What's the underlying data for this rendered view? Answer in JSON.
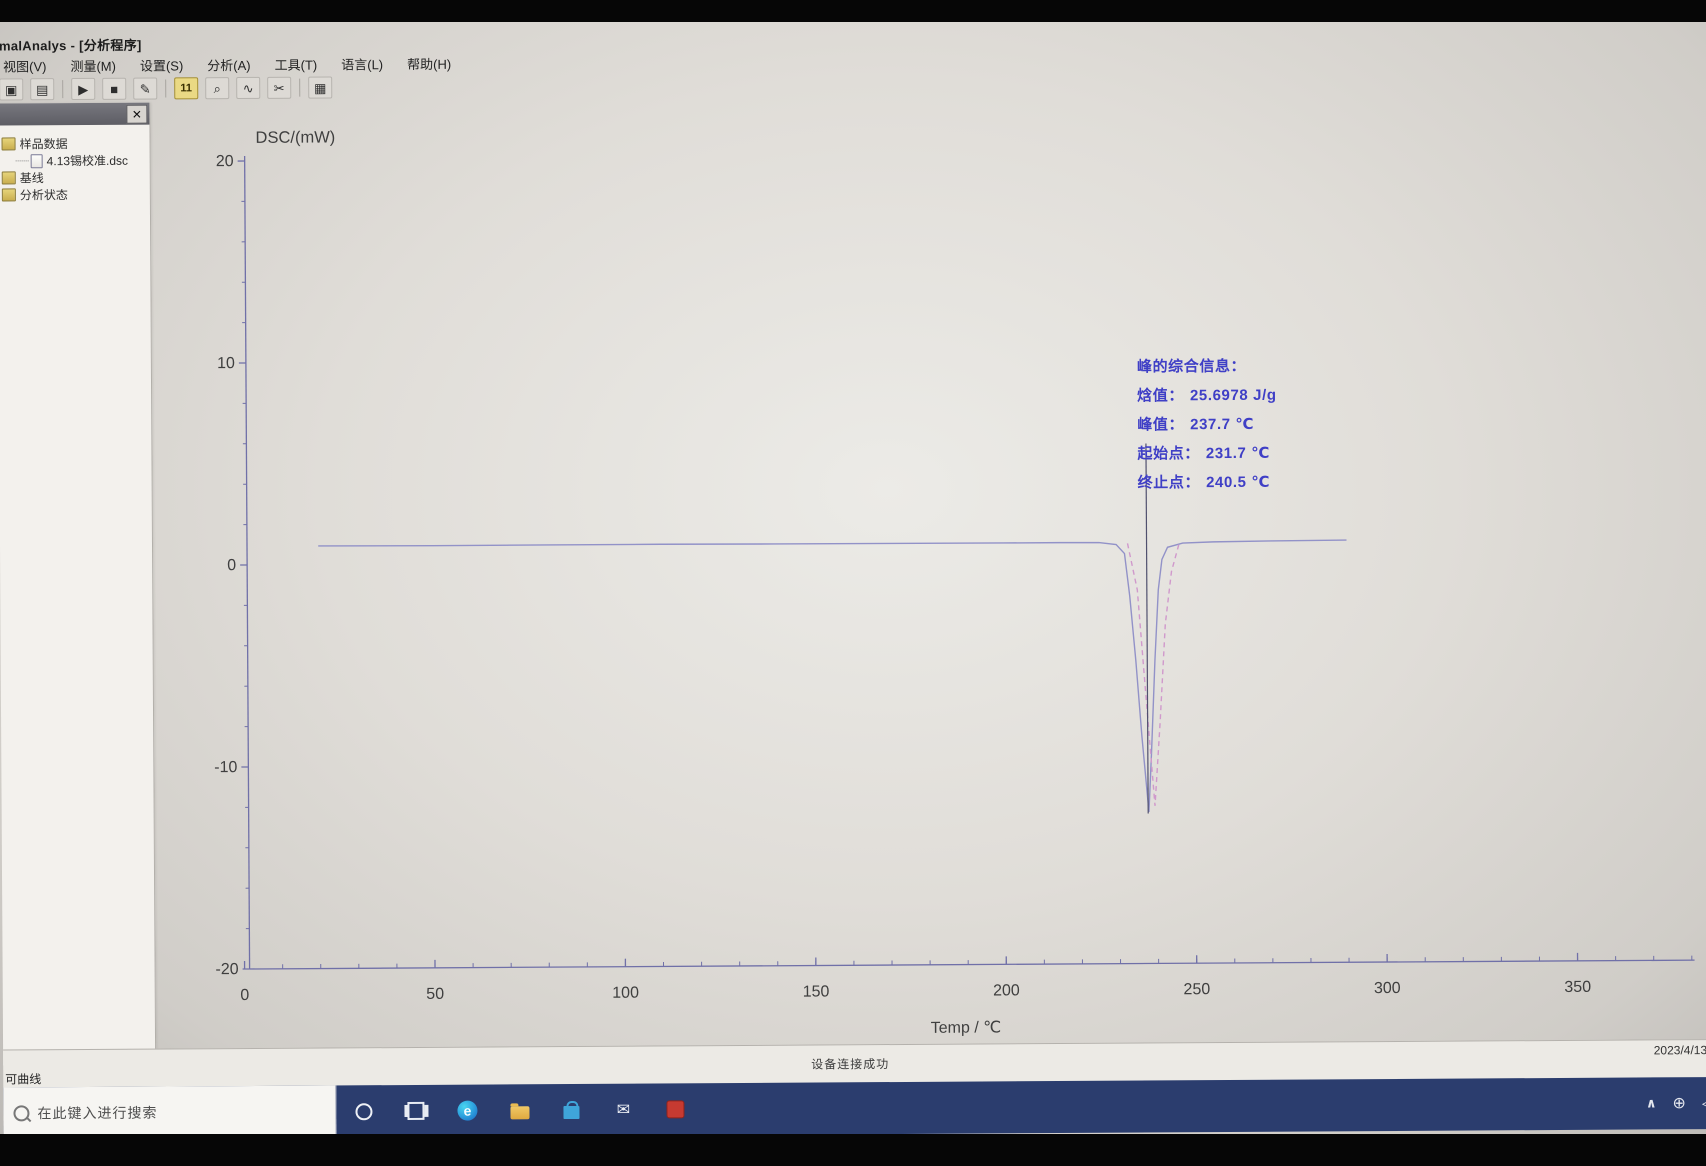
{
  "window": {
    "title": "malAnalys - [分析程序]"
  },
  "menu": {
    "items": [
      "视图(V)",
      "测量(M)",
      "设置(S)",
      "分析(A)",
      "工具(T)",
      "语言(L)",
      "帮助(H)"
    ]
  },
  "toolbar": {
    "icons": [
      {
        "name": "save-icon",
        "glyph": "▣"
      },
      {
        "name": "print-preview-icon",
        "glyph": "▤"
      },
      {
        "name": "separator",
        "glyph": ""
      },
      {
        "name": "run-icon",
        "glyph": "▶"
      },
      {
        "name": "stop-icon",
        "glyph": "■"
      },
      {
        "name": "sign-pen-icon",
        "glyph": "✎"
      },
      {
        "name": "separator",
        "glyph": ""
      },
      {
        "name": "isothermal-icon",
        "glyph": "11"
      },
      {
        "name": "zoom-icon",
        "glyph": "⌕"
      },
      {
        "name": "curve-tool-icon",
        "glyph": "∿"
      },
      {
        "name": "cut-icon",
        "glyph": "✂"
      },
      {
        "name": "separator",
        "glyph": ""
      },
      {
        "name": "grid-icon",
        "glyph": "▦"
      }
    ]
  },
  "sidebar": {
    "close_glyph": "✕",
    "tree": [
      {
        "label": "样品数据",
        "level": 0
      },
      {
        "label": "4.13锡校准.dsc",
        "level": 1
      },
      {
        "label": "基线",
        "level": 0
      },
      {
        "label": "分析状态",
        "level": 0
      }
    ]
  },
  "chart_data": {
    "type": "line",
    "title": "",
    "xlabel": "Temp / ℃",
    "ylabel": "DSC/(mW)",
    "xlim": [
      0,
      380
    ],
    "ylim": [
      -20,
      20
    ],
    "x_ticks": [
      0,
      50,
      100,
      150,
      200,
      250,
      300,
      350
    ],
    "y_ticks": [
      20,
      10,
      0,
      -10,
      -20
    ],
    "minor_step_x": 10,
    "minor_step_y": 2,
    "grid": false,
    "legend": "none",
    "series": [
      {
        "name": "dsc-curve",
        "color": "#9292c8",
        "dash": "none",
        "points": [
          [
            20,
            0.92
          ],
          [
            50,
            0.9
          ],
          [
            80,
            0.9
          ],
          [
            110,
            0.9
          ],
          [
            140,
            0.88
          ],
          [
            170,
            0.87
          ],
          [
            200,
            0.86
          ],
          [
            215,
            0.86
          ],
          [
            225,
            0.85
          ],
          [
            229.5,
            0.75
          ],
          [
            231.7,
            0.3
          ],
          [
            233,
            -1.8
          ],
          [
            234.5,
            -5
          ],
          [
            236,
            -8.8
          ],
          [
            237.7,
            -12.5
          ],
          [
            238.5,
            -9.5
          ],
          [
            239.5,
            -5
          ],
          [
            240.5,
            -1.5
          ],
          [
            241.5,
            0
          ],
          [
            243,
            0.6
          ],
          [
            247,
            0.8
          ],
          [
            255,
            0.85
          ],
          [
            270,
            0.88
          ],
          [
            290,
            0.9
          ]
        ]
      },
      {
        "name": "peak-mark-dashed",
        "color": "#d099cc",
        "dash": "5 4",
        "points": [
          [
            232.5,
            0.8
          ],
          [
            235,
            -1.5
          ],
          [
            237,
            -6.5
          ],
          [
            239.3,
            -12.2
          ],
          [
            240.8,
            -8
          ],
          [
            242.3,
            -3.2
          ],
          [
            244,
            -0.6
          ],
          [
            246,
            0.75
          ]
        ]
      }
    ],
    "cursor_x": 237.5,
    "peak_info": {
      "enthalpy_J_per_g": 25.6978,
      "peak_C": 237.7,
      "onset_C": 231.7,
      "end_C": 240.5
    }
  },
  "annotation": {
    "title": "峰的综合信息：",
    "rows": [
      {
        "label": "焓值：",
        "value": "25.6978 J/g"
      },
      {
        "label": "峰值：",
        "value": "237.7 ℃"
      },
      {
        "label": "起始点：",
        "value": "231.7 ℃"
      },
      {
        "label": "终止点：",
        "value": "240.5 ℃"
      }
    ]
  },
  "status_bar": {
    "left_partial": "可曲线",
    "message": "设备连接成功",
    "date": "2023/4/13"
  },
  "taskbar": {
    "search_placeholder": "在此键入进行搜索",
    "icons": [
      {
        "name": "search-circle-icon"
      },
      {
        "name": "task-view-icon"
      },
      {
        "name": "edge-browser-icon"
      },
      {
        "name": "file-explorer-icon"
      },
      {
        "name": "store-icon"
      },
      {
        "name": "mail-icon"
      },
      {
        "name": "analysis-app-red-icon"
      }
    ],
    "tray": [
      {
        "name": "tray-expand-icon",
        "glyph": "∧"
      },
      {
        "name": "network-globe-icon",
        "glyph": "⊕"
      },
      {
        "name": "volume-icon",
        "glyph": "◁"
      }
    ]
  },
  "colors": {
    "annotation_text": "#3f3fc6",
    "curve": "#9292c8",
    "peak_dashed": "#d099cc",
    "axis": "#7070a8",
    "taskbar": "#2b3d6e"
  }
}
